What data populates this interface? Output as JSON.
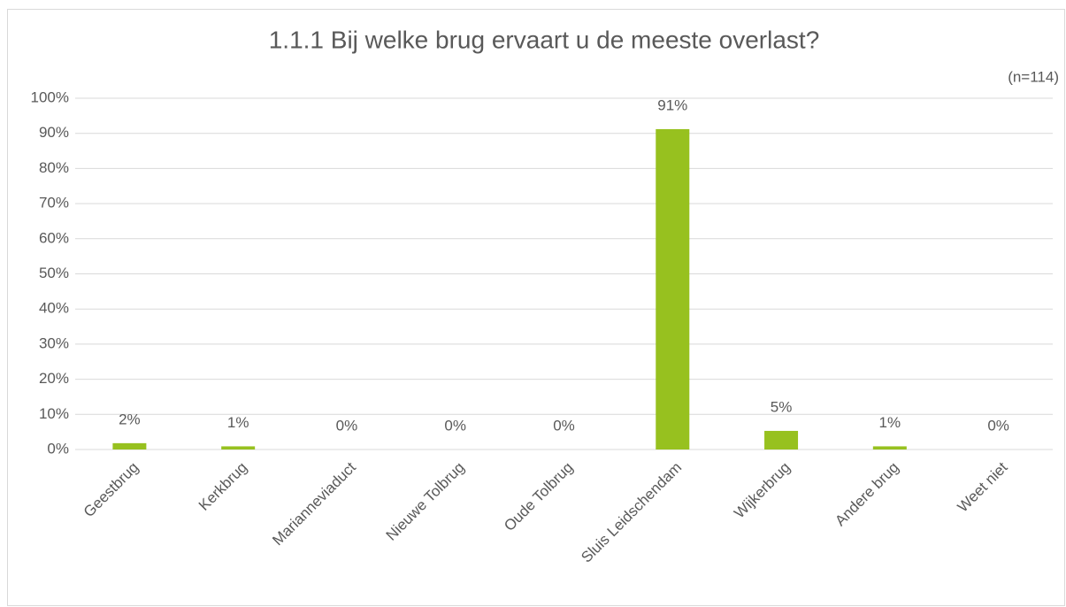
{
  "chart_data": {
    "type": "bar",
    "title": "1.1.1 Bij welke brug ervaart u de meeste overlast?",
    "subtitle": "(n=114)",
    "categories": [
      "Geestbrug",
      "Kerkbrug",
      "Marianneviaduct",
      "Nieuwe Tolbrug",
      "Oude Tolbrug",
      "Sluis Leidschendam",
      "Wijkerbrug",
      "Andere brug",
      "Weet niet"
    ],
    "values": [
      1.8,
      0.9,
      0,
      0,
      0,
      91.2,
      5.3,
      0.9,
      0
    ],
    "value_labels": [
      "2%",
      "1%",
      "0%",
      "0%",
      "0%",
      "91%",
      "5%",
      "1%",
      "0%"
    ],
    "color": "#97c11f",
    "ylim": [
      0,
      100
    ],
    "yticks": [
      {
        "value": 0,
        "label": "0%"
      },
      {
        "value": 10,
        "label": "10%"
      },
      {
        "value": 20,
        "label": "20%"
      },
      {
        "value": 30,
        "label": "30%"
      },
      {
        "value": 40,
        "label": "40%"
      },
      {
        "value": 50,
        "label": "50%"
      },
      {
        "value": 60,
        "label": "60%"
      },
      {
        "value": 70,
        "label": "70%"
      },
      {
        "value": 80,
        "label": "80%"
      },
      {
        "value": 90,
        "label": "90%"
      },
      {
        "value": 100,
        "label": "100%"
      }
    ],
    "grid": true
  }
}
